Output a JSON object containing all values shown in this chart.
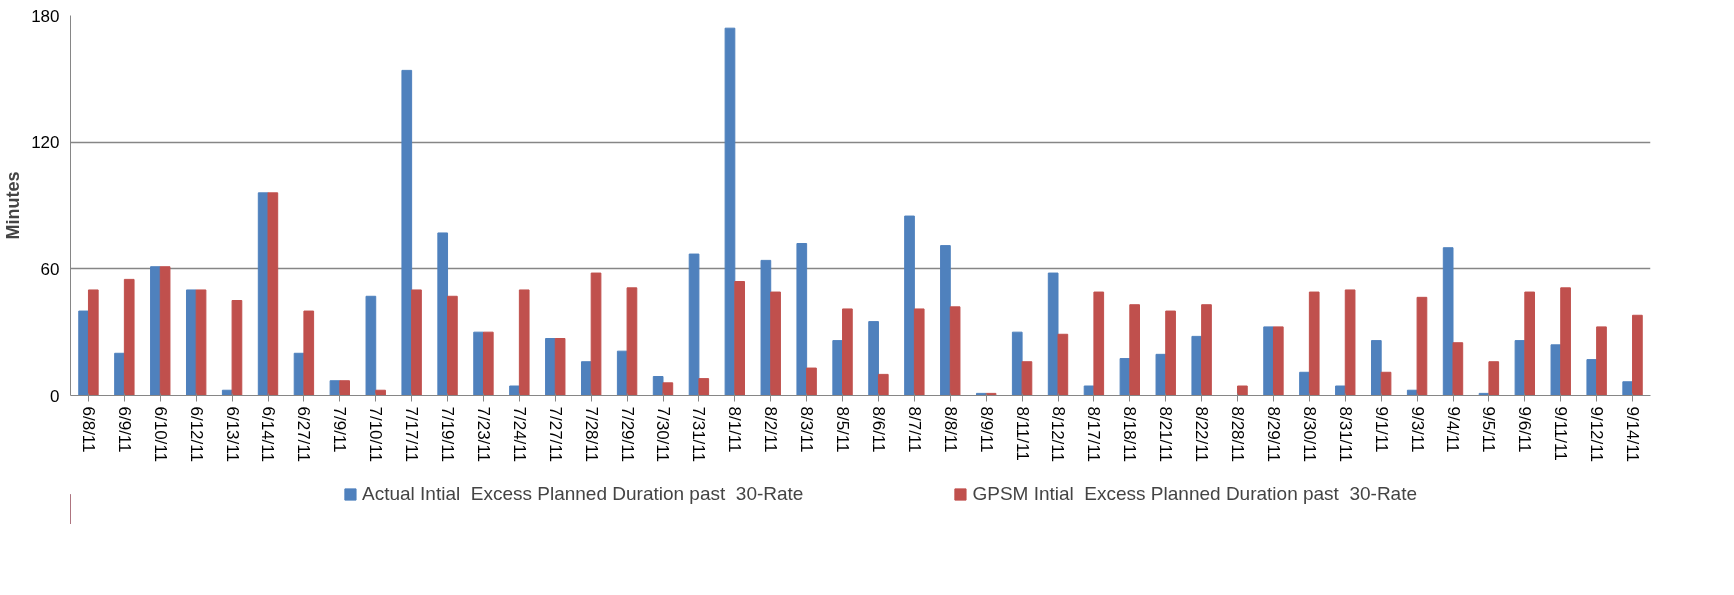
{
  "chart_data": {
    "type": "bar",
    "ylabel": "Minutes",
    "categories": [
      "6/8/11",
      "6/9/11",
      "6/10/11",
      "6/12/11",
      "6/13/11",
      "6/14/11",
      "6/27/11",
      "7/9/11",
      "7/10/11",
      "7/17/11",
      "7/19/11",
      "7/23/11",
      "7/24/11",
      "7/27/11",
      "7/28/11",
      "7/29/11",
      "7/30/11",
      "7/31/11",
      "8/1/11",
      "8/2/11",
      "8/3/11",
      "8/5/11",
      "8/6/11",
      "8/7/11",
      "8/8/11",
      "8/9/11",
      "8/11/11",
      "8/12/11",
      "8/17/11",
      "8/18/11",
      "8/21/11",
      "8/22/11",
      "8/28/11",
      "8/29/11",
      "8/30/11",
      "8/31/11",
      "9/1/11",
      "9/3/11",
      "9/4/11",
      "9/5/11",
      "9/6/11",
      "9/11/11",
      "9/12/11",
      "9/14/11"
    ],
    "series": [
      {
        "name": "Actual Intial  Excess Planned Duration past  30-Rate",
        "color": "#4f81bd",
        "values": [
          40,
          20,
          61,
          50,
          2.5,
          96,
          20,
          7,
          47,
          154,
          77,
          30,
          4.5,
          27,
          16,
          21,
          9,
          67,
          174,
          64,
          72,
          26,
          35,
          85,
          71,
          1,
          30,
          58,
          4.5,
          17.5,
          19.5,
          28,
          0,
          32.5,
          11,
          4.5,
          26,
          2.5,
          70,
          1,
          26,
          24,
          17,
          6.5
        ]
      },
      {
        "name": "GPSM Intial  Excess Planned Duration past  30-Rate",
        "color": "#c0504d",
        "values": [
          50,
          55,
          61,
          50,
          45,
          96,
          40,
          7,
          2.5,
          50,
          47,
          30,
          50,
          27,
          58,
          51,
          6,
          8,
          54,
          49,
          13,
          41,
          10,
          41,
          42,
          1,
          16,
          29,
          49,
          43,
          40,
          43,
          4.5,
          32.5,
          49,
          50,
          11,
          46.5,
          25,
          16,
          49,
          51,
          32.5,
          38
        ]
      }
    ],
    "ylim": [
      0,
      180
    ],
    "yticks": [
      0,
      60,
      120,
      180
    ],
    "grid": "y",
    "legend": "bottom"
  }
}
